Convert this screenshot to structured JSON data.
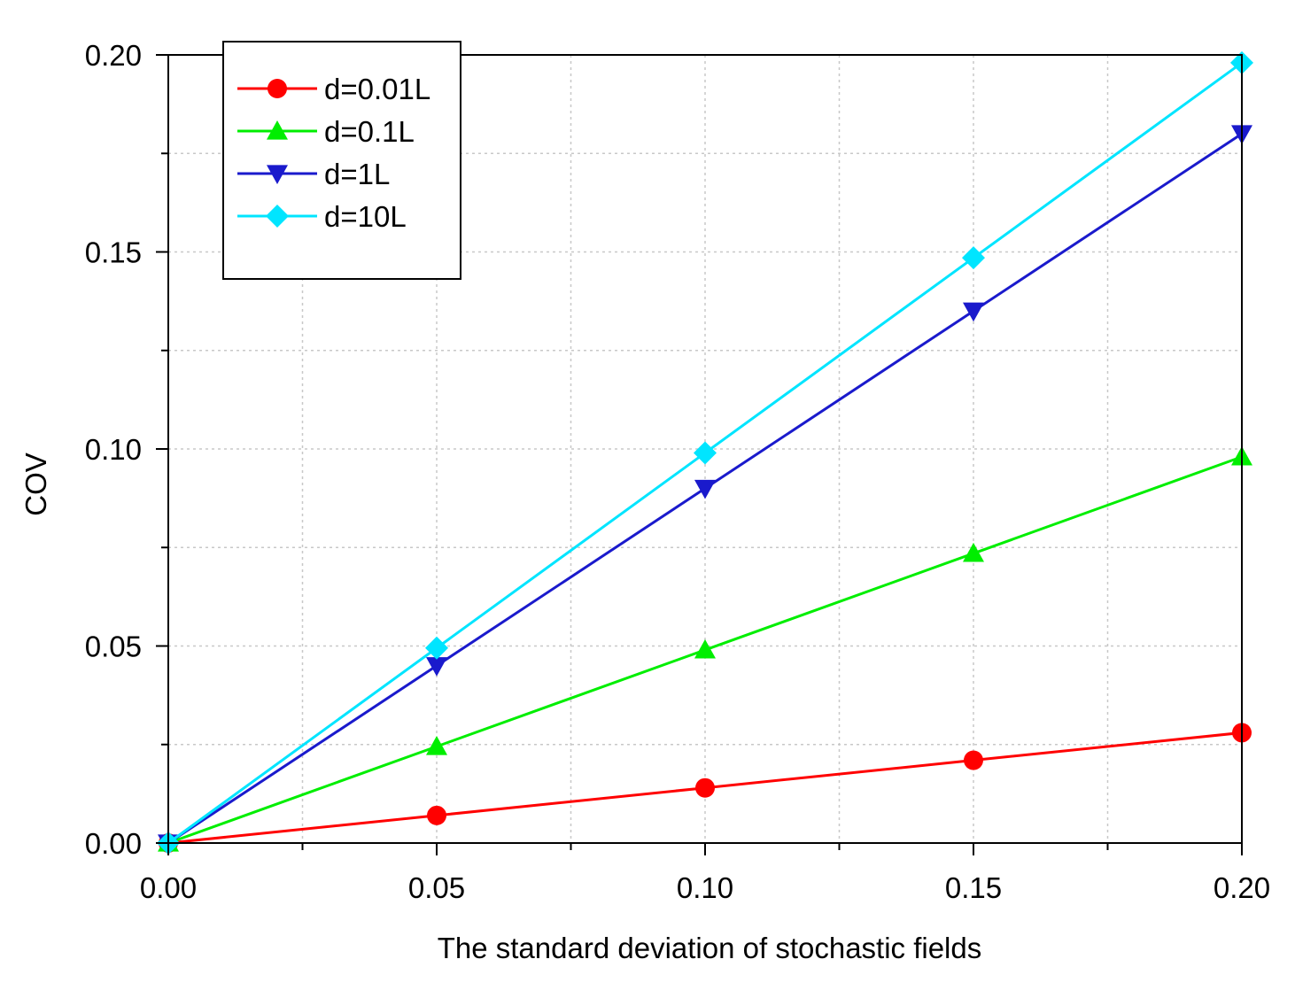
{
  "chart_data": {
    "type": "line",
    "title": "",
    "xlabel": "The standard deviation of stochastic fields",
    "ylabel": "COV",
    "xlim": [
      0,
      0.2
    ],
    "ylim": [
      0,
      0.2
    ],
    "grid": true,
    "legend_position": "top-left",
    "x_ticks": [
      "0.00",
      "0.05",
      "0.10",
      "0.15",
      "0.20"
    ],
    "y_ticks": [
      "0.00",
      "0.05",
      "0.10",
      "0.15",
      "0.20"
    ],
    "x": [
      0,
      0.05,
      0.1,
      0.15,
      0.2
    ],
    "series": [
      {
        "name": "d=0.01L",
        "color": "#ff0000",
        "marker": "circle",
        "values": [
          0,
          0.007,
          0.014,
          0.021,
          0.028
        ]
      },
      {
        "name": "d=0.1L",
        "color": "#00ee00",
        "marker": "triangle-up",
        "values": [
          0,
          0.0245,
          0.049,
          0.0735,
          0.098
        ]
      },
      {
        "name": "d=1L",
        "color": "#1a1acc",
        "marker": "triangle-down",
        "values": [
          0,
          0.045,
          0.09,
          0.135,
          0.18
        ]
      },
      {
        "name": "d=10L",
        "color": "#00e5ff",
        "marker": "diamond",
        "values": [
          0,
          0.0495,
          0.099,
          0.1485,
          0.198
        ]
      }
    ]
  }
}
